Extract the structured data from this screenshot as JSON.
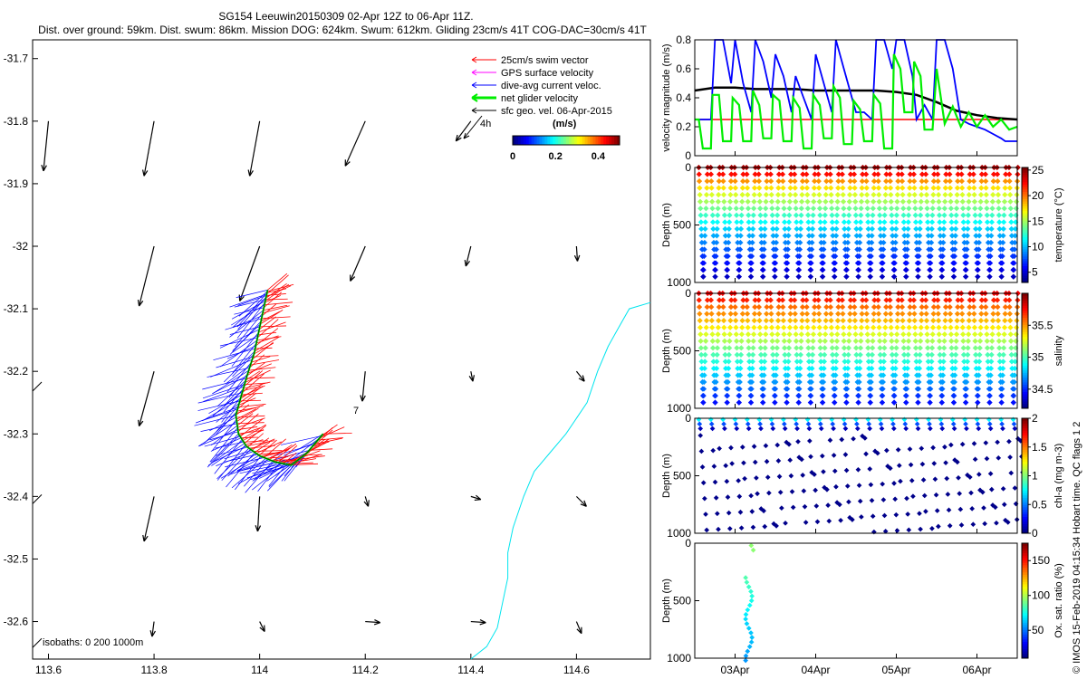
{
  "title": {
    "line1": "SG154 Leeuwin20150309 02-Apr 12Z to 06-Apr 11Z.",
    "line2": "Dist. over ground: 59km. Dist. swum: 86km. Mission DOG: 624km. Swum: 612km. Gliding 23cm/s 41T COG-DAC=30cm/s 41T"
  },
  "colors": {
    "swim": "#ff0000",
    "gps": "#ff00ff",
    "dac": "#0000ff",
    "net": "#00ee00",
    "sfc": "#000000",
    "coast": "#00e5ee",
    "black": "#000000"
  },
  "credit": "© IMOS 15-Feb-2019 04:15:34 Hobart time. QC flags 1  2",
  "chart_data": [
    {
      "id": "map",
      "type": "scatter",
      "title": "SG154 Leeuwin20150309 02-Apr 12Z to 06-Apr 11Z.",
      "xlabel": "",
      "ylabel": "",
      "xlim": [
        113.57,
        114.74
      ],
      "ylim": [
        -32.66,
        -31.67
      ],
      "xticks": [
        113.6,
        113.8,
        114,
        114.2,
        114.4,
        114.6
      ],
      "xticklabels": [
        "113.6",
        "113.8",
        "114",
        "114.2",
        "114.4",
        "114.6"
      ],
      "yticks": [
        -31.7,
        -31.8,
        -31.9,
        -32.0,
        -32.1,
        -32.2,
        -32.3,
        -32.4,
        -32.5,
        -32.6
      ],
      "yticklabels": [
        "-31.7",
        "-31.8",
        "-31.9",
        "-32",
        "-32.1",
        "-32.2",
        "-32.3",
        "-32.4",
        "-32.5",
        "-32.6"
      ],
      "legend": {
        "position": "top-right",
        "entries": [
          "25cm/s swim vector",
          "GPS surface velocity",
          "dive-avg current veloc.",
          "net glider velocity",
          "sfc geo. vel. 06-Apr-2015"
        ]
      },
      "speed_colorbar": {
        "label": "(m/s)",
        "ticks": [
          "0",
          "0.2",
          "0.4"
        ],
        "range": [
          0,
          0.5
        ]
      },
      "annotations": {
        "four_h": "4h",
        "seven": "7",
        "isobaths": "isobaths: 0   200  1000m"
      },
      "track": [
        [
          114.12,
          -32.3
        ],
        [
          114.09,
          -32.33
        ],
        [
          114.06,
          -32.35
        ],
        [
          114.03,
          -32.345
        ],
        [
          114.0,
          -32.335
        ],
        [
          113.975,
          -32.32
        ],
        [
          113.96,
          -32.3
        ],
        [
          113.955,
          -32.27
        ],
        [
          113.965,
          -32.24
        ],
        [
          113.975,
          -32.21
        ],
        [
          113.99,
          -32.17
        ],
        [
          114.0,
          -32.13
        ],
        [
          114.01,
          -32.09
        ],
        [
          114.015,
          -32.07
        ]
      ],
      "sfc_vectors": [
        {
          "lon": 113.6,
          "lat": -31.8,
          "u": -0.05,
          "v": -0.5
        },
        {
          "lon": 113.8,
          "lat": -31.8,
          "u": -0.1,
          "v": -0.55
        },
        {
          "lon": 114.0,
          "lat": -31.8,
          "u": -0.1,
          "v": -0.55
        },
        {
          "lon": 114.2,
          "lat": -31.8,
          "u": -0.2,
          "v": -0.45
        },
        {
          "lon": 114.4,
          "lat": -31.8,
          "u": -0.15,
          "v": -0.2
        },
        {
          "lon": 113.8,
          "lat": -32.0,
          "u": -0.15,
          "v": -0.6
        },
        {
          "lon": 114.0,
          "lat": -32.0,
          "u": -0.2,
          "v": -0.55
        },
        {
          "lon": 114.2,
          "lat": -32.0,
          "u": -0.15,
          "v": -0.35
        },
        {
          "lon": 114.4,
          "lat": -32.0,
          "u": -0.05,
          "v": -0.2
        },
        {
          "lon": 114.6,
          "lat": -32.0,
          "u": 0.01,
          "v": -0.15
        },
        {
          "lon": 113.8,
          "lat": -32.2,
          "u": -0.15,
          "v": -0.55
        },
        {
          "lon": 114.2,
          "lat": -32.2,
          "u": -0.03,
          "v": -0.3
        },
        {
          "lon": 114.4,
          "lat": -32.2,
          "u": 0.02,
          "v": -0.1
        },
        {
          "lon": 114.6,
          "lat": -32.2,
          "u": 0.08,
          "v": -0.1
        },
        {
          "lon": 113.8,
          "lat": -32.4,
          "u": -0.1,
          "v": -0.45
        },
        {
          "lon": 114.0,
          "lat": -32.4,
          "u": -0.02,
          "v": -0.35
        },
        {
          "lon": 114.2,
          "lat": -32.4,
          "u": 0.03,
          "v": -0.1
        },
        {
          "lon": 114.4,
          "lat": -32.4,
          "u": 0.1,
          "v": -0.03
        },
        {
          "lon": 114.6,
          "lat": -32.4,
          "u": 0.1,
          "v": -0.1
        },
        {
          "lon": 113.8,
          "lat": -32.6,
          "u": -0.02,
          "v": -0.15
        },
        {
          "lon": 114.0,
          "lat": -32.6,
          "u": 0.05,
          "v": -0.1
        },
        {
          "lon": 114.2,
          "lat": -32.6,
          "u": 0.15,
          "v": -0.01
        },
        {
          "lon": 114.4,
          "lat": -32.6,
          "u": 0.15,
          "v": -0.01
        },
        {
          "lon": 114.6,
          "lat": -32.6,
          "u": 0.05,
          "v": -0.12
        }
      ],
      "coastline": [
        [
          114.74,
          -32.09
        ],
        [
          114.7,
          -32.1
        ],
        [
          114.68,
          -32.13
        ],
        [
          114.66,
          -32.16
        ],
        [
          114.64,
          -32.2
        ],
        [
          114.62,
          -32.25
        ],
        [
          114.58,
          -32.3
        ],
        [
          114.55,
          -32.33
        ],
        [
          114.52,
          -32.36
        ],
        [
          114.5,
          -32.4
        ],
        [
          114.48,
          -32.45
        ],
        [
          114.47,
          -32.49
        ],
        [
          114.47,
          -32.53
        ],
        [
          114.46,
          -32.57
        ],
        [
          114.45,
          -32.61
        ],
        [
          114.43,
          -32.64
        ],
        [
          114.4,
          -32.66
        ]
      ]
    },
    {
      "id": "velocity",
      "type": "line",
      "xlabel": "",
      "ylabel": "velocity magnitude (m/s)",
      "xlim": [
        2.5,
        6.5
      ],
      "ylim": [
        0,
        0.8
      ],
      "yticks": [
        0,
        0.2,
        0.4,
        0.6,
        0.8
      ],
      "yticklabels": [
        "0",
        "0.2",
        "0.4",
        "0.6",
        "0.8"
      ],
      "series": [
        {
          "name": "swim",
          "color": "red",
          "x": [
            2.5,
            6.5
          ],
          "values": [
            0.25,
            0.25
          ]
        },
        {
          "name": "net glider velocity",
          "color": "black",
          "x": [
            2.5,
            2.75,
            3.0,
            3.25,
            3.5,
            3.75,
            4.0,
            4.25,
            4.5,
            4.75,
            5.0,
            5.25,
            5.5,
            5.75,
            6.0,
            6.25,
            6.5
          ],
          "values": [
            0.45,
            0.47,
            0.47,
            0.46,
            0.46,
            0.46,
            0.45,
            0.45,
            0.45,
            0.45,
            0.44,
            0.42,
            0.37,
            0.31,
            0.28,
            0.26,
            0.25
          ]
        },
        {
          "name": "dive-avg current",
          "color": "blue",
          "x": [
            2.5,
            2.55,
            2.7,
            2.75,
            2.85,
            2.95,
            3.0,
            3.1,
            3.2,
            3.25,
            3.35,
            3.45,
            3.5,
            3.6,
            3.7,
            3.75,
            3.85,
            3.95,
            4.0,
            4.1,
            4.2,
            4.25,
            4.35,
            4.45,
            4.5,
            4.6,
            4.7,
            4.75,
            4.85,
            4.95,
            5.0,
            5.1,
            5.2,
            5.25,
            5.35,
            5.45,
            5.5,
            5.6,
            5.7,
            5.8,
            5.9,
            6.0,
            6.1,
            6.2,
            6.3,
            6.35,
            6.45,
            6.5
          ],
          "values": [
            0.25,
            0.25,
            0.25,
            0.8,
            0.8,
            0.5,
            0.8,
            0.5,
            0.3,
            0.8,
            0.65,
            0.4,
            0.7,
            0.55,
            0.3,
            0.55,
            0.4,
            0.25,
            0.7,
            0.5,
            0.3,
            0.8,
            0.6,
            0.4,
            0.3,
            0.3,
            0.25,
            0.8,
            0.8,
            0.6,
            0.8,
            0.8,
            0.55,
            0.25,
            0.35,
            0.25,
            0.8,
            0.8,
            0.6,
            0.25,
            0.22,
            0.2,
            0.18,
            0.15,
            0.12,
            0.1,
            0.1,
            0.1
          ]
        },
        {
          "name": "GPS surface velocity",
          "color": "green",
          "x": [
            2.5,
            2.55,
            2.6,
            2.7,
            2.72,
            2.8,
            2.85,
            2.95,
            2.97,
            3.05,
            3.1,
            3.2,
            3.22,
            3.3,
            3.35,
            3.45,
            3.47,
            3.55,
            3.6,
            3.7,
            3.72,
            3.8,
            3.85,
            3.95,
            3.97,
            4.05,
            4.1,
            4.2,
            4.22,
            4.3,
            4.35,
            4.45,
            4.47,
            4.55,
            4.6,
            4.7,
            4.72,
            4.8,
            4.85,
            4.95,
            4.97,
            5.05,
            5.1,
            5.2,
            5.22,
            5.3,
            5.35,
            5.45,
            5.5,
            5.6,
            5.7,
            5.8,
            5.9,
            6.0,
            6.1,
            6.2,
            6.3,
            6.4,
            6.5
          ],
          "values": [
            0.25,
            0.25,
            0.05,
            0.05,
            0.42,
            0.42,
            0.1,
            0.1,
            0.4,
            0.35,
            0.1,
            0.1,
            0.45,
            0.35,
            0.12,
            0.12,
            0.42,
            0.38,
            0.1,
            0.1,
            0.4,
            0.33,
            0.05,
            0.05,
            0.42,
            0.35,
            0.12,
            0.12,
            0.48,
            0.4,
            0.08,
            0.08,
            0.38,
            0.32,
            0.1,
            0.1,
            0.42,
            0.36,
            0.05,
            0.05,
            0.7,
            0.6,
            0.3,
            0.3,
            0.65,
            0.55,
            0.18,
            0.18,
            0.6,
            0.22,
            0.34,
            0.2,
            0.3,
            0.2,
            0.28,
            0.2,
            0.25,
            0.18,
            0.2
          ]
        }
      ]
    },
    {
      "id": "temperature",
      "type": "scatter",
      "ylabel": "Depth (m)",
      "clabel": "temperature (°C)",
      "ylim": [
        1000,
        0
      ],
      "yticks": [
        0,
        500,
        1000
      ],
      "yticklabels": [
        "0",
        "500",
        "1000"
      ],
      "crange": [
        3,
        25.5
      ],
      "cticks": [
        5,
        10,
        15,
        20,
        25
      ],
      "cticklabels": [
        "5",
        "10",
        "15",
        "20",
        "25"
      ],
      "dives": 27,
      "max_depth": 950,
      "profile_depth": [
        0,
        50,
        100,
        200,
        300,
        400,
        500,
        700,
        900,
        1000
      ],
      "profile_value": [
        24.5,
        23,
        20,
        17,
        15,
        13,
        11,
        8,
        5,
        4
      ]
    },
    {
      "id": "salinity",
      "type": "scatter",
      "ylabel": "Depth (m)",
      "clabel": "salinity",
      "ylim": [
        1000,
        0
      ],
      "yticks": [
        0,
        500,
        1000
      ],
      "yticklabels": [
        "0",
        "500",
        "1000"
      ],
      "crange": [
        34.2,
        36.0
      ],
      "cticks": [
        34.5,
        35,
        35.5
      ],
      "cticklabels": [
        "34.5",
        "35",
        "35.5"
      ],
      "dives": 27,
      "max_depth": 950,
      "profile_depth": [
        0,
        50,
        100,
        200,
        300,
        400,
        500,
        700,
        900,
        1000
      ],
      "profile_value": [
        35.8,
        35.75,
        35.6,
        35.5,
        35.35,
        35.2,
        35.05,
        34.8,
        34.5,
        34.4
      ]
    },
    {
      "id": "chla",
      "type": "scatter",
      "ylabel": "Depth (m)",
      "clabel": "chl-a (mg m-3)",
      "ylim": [
        1000,
        0
      ],
      "yticks": [
        0,
        500,
        1000
      ],
      "yticklabels": [
        "0",
        "500",
        "1000"
      ],
      "crange": [
        0,
        2
      ],
      "cticks": [
        0,
        0.5,
        1,
        1.5,
        2
      ],
      "cticklabels": [
        "0",
        "0.5",
        "1",
        "1.5",
        "2"
      ],
      "dives": 27,
      "max_depth": 990,
      "profile_depth": [
        0,
        30,
        60,
        100,
        1000
      ],
      "profile_value": [
        0.8,
        0.6,
        0.3,
        0.05,
        0.02
      ]
    },
    {
      "id": "oxygen",
      "type": "scatter",
      "ylabel": "Depth (m)",
      "clabel": "Ox. sat. ratio (%)",
      "ylim": [
        1000,
        0
      ],
      "yticks": [
        0,
        500,
        1000
      ],
      "yticklabels": [
        "0",
        "500",
        "1000"
      ],
      "crange": [
        10,
        175
      ],
      "cticks": [
        50,
        100,
        150
      ],
      "cticklabels": [
        "50",
        "100",
        "150"
      ],
      "xlim": [
        2.5,
        6.5
      ],
      "xticks": [
        3,
        4,
        5,
        6
      ],
      "xticklabels": [
        "03Apr",
        "04Apr",
        "05Apr",
        "06Apr"
      ],
      "profile_depth": [
        0,
        50,
        100,
        200,
        300,
        400,
        500,
        700,
        900,
        1000
      ],
      "profile_value": [
        95,
        95,
        93,
        90,
        85,
        80,
        75,
        65,
        60,
        55
      ]
    }
  ]
}
